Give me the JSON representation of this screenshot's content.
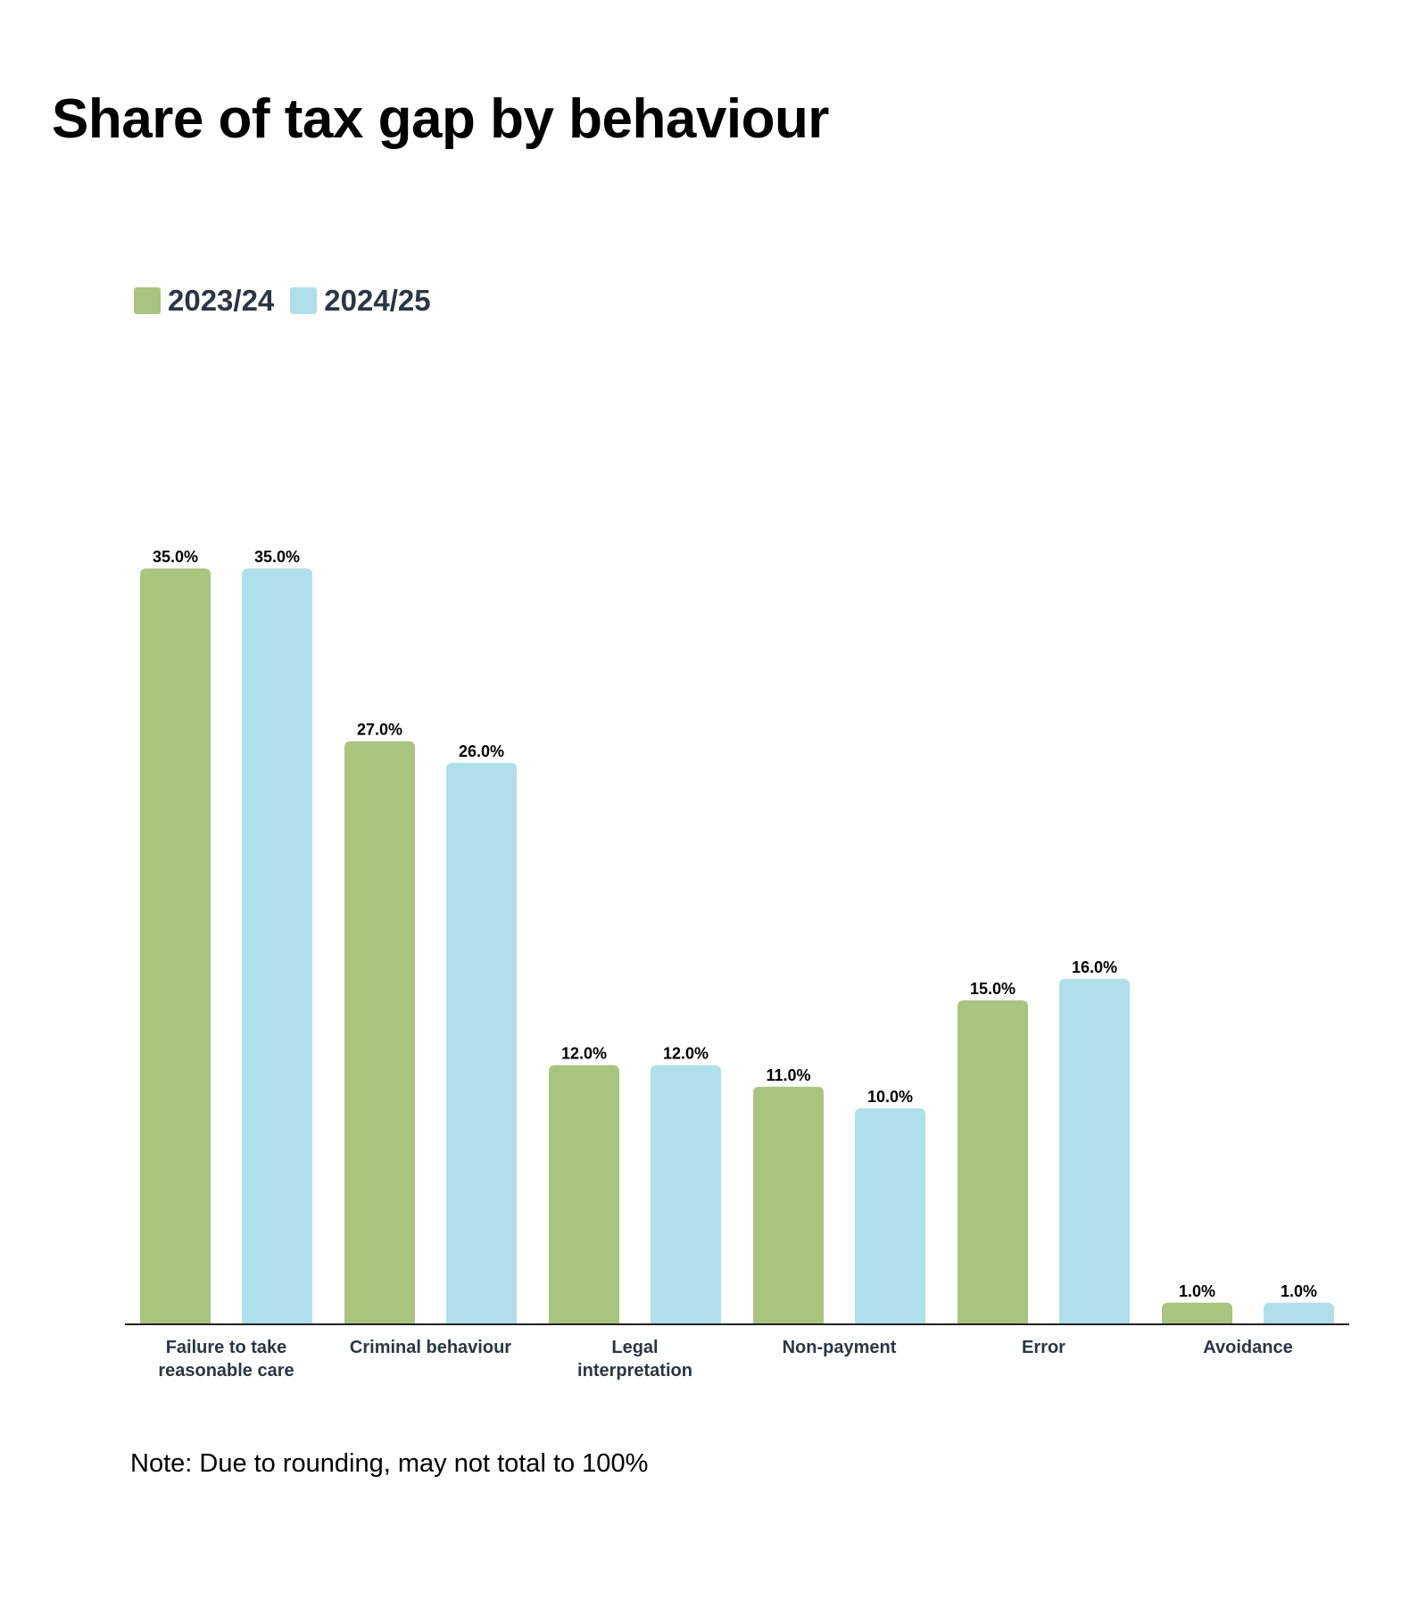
{
  "chart_data": {
    "type": "bar",
    "title": "Share of tax gap by behaviour",
    "categories": [
      "Failure to take reasonable care",
      "Criminal behaviour",
      "Legal interpretation",
      "Non-payment",
      "Error",
      "Avoidance"
    ],
    "category_lines": [
      [
        "Failure to take",
        "reasonable care"
      ],
      [
        "Criminal behaviour"
      ],
      [
        "Legal",
        "interpretation"
      ],
      [
        "Non-payment"
      ],
      [
        "Error"
      ],
      [
        "Avoidance"
      ]
    ],
    "series": [
      {
        "name": "2023/24",
        "color": "#a9c47f",
        "values": [
          35.0,
          27.0,
          12.0,
          11.0,
          15.0,
          1.0
        ],
        "labels": [
          "35.0%",
          "27.0%",
          "12.0%",
          "11.0%",
          "15.0%",
          "1.0%"
        ]
      },
      {
        "name": "2024/25",
        "color": "#b0dfec",
        "values": [
          35.0,
          26.0,
          12.0,
          10.0,
          16.0,
          1.0
        ],
        "labels": [
          "35.0%",
          "26.0%",
          "12.0%",
          "10.0%",
          "16.0%",
          "1.0%"
        ]
      }
    ],
    "xlabel": "",
    "ylabel": "",
    "ylim": [
      0,
      35
    ],
    "grid": false,
    "legend_position": "top-left",
    "note": "Note: Due to rounding, may not total to 100%"
  }
}
